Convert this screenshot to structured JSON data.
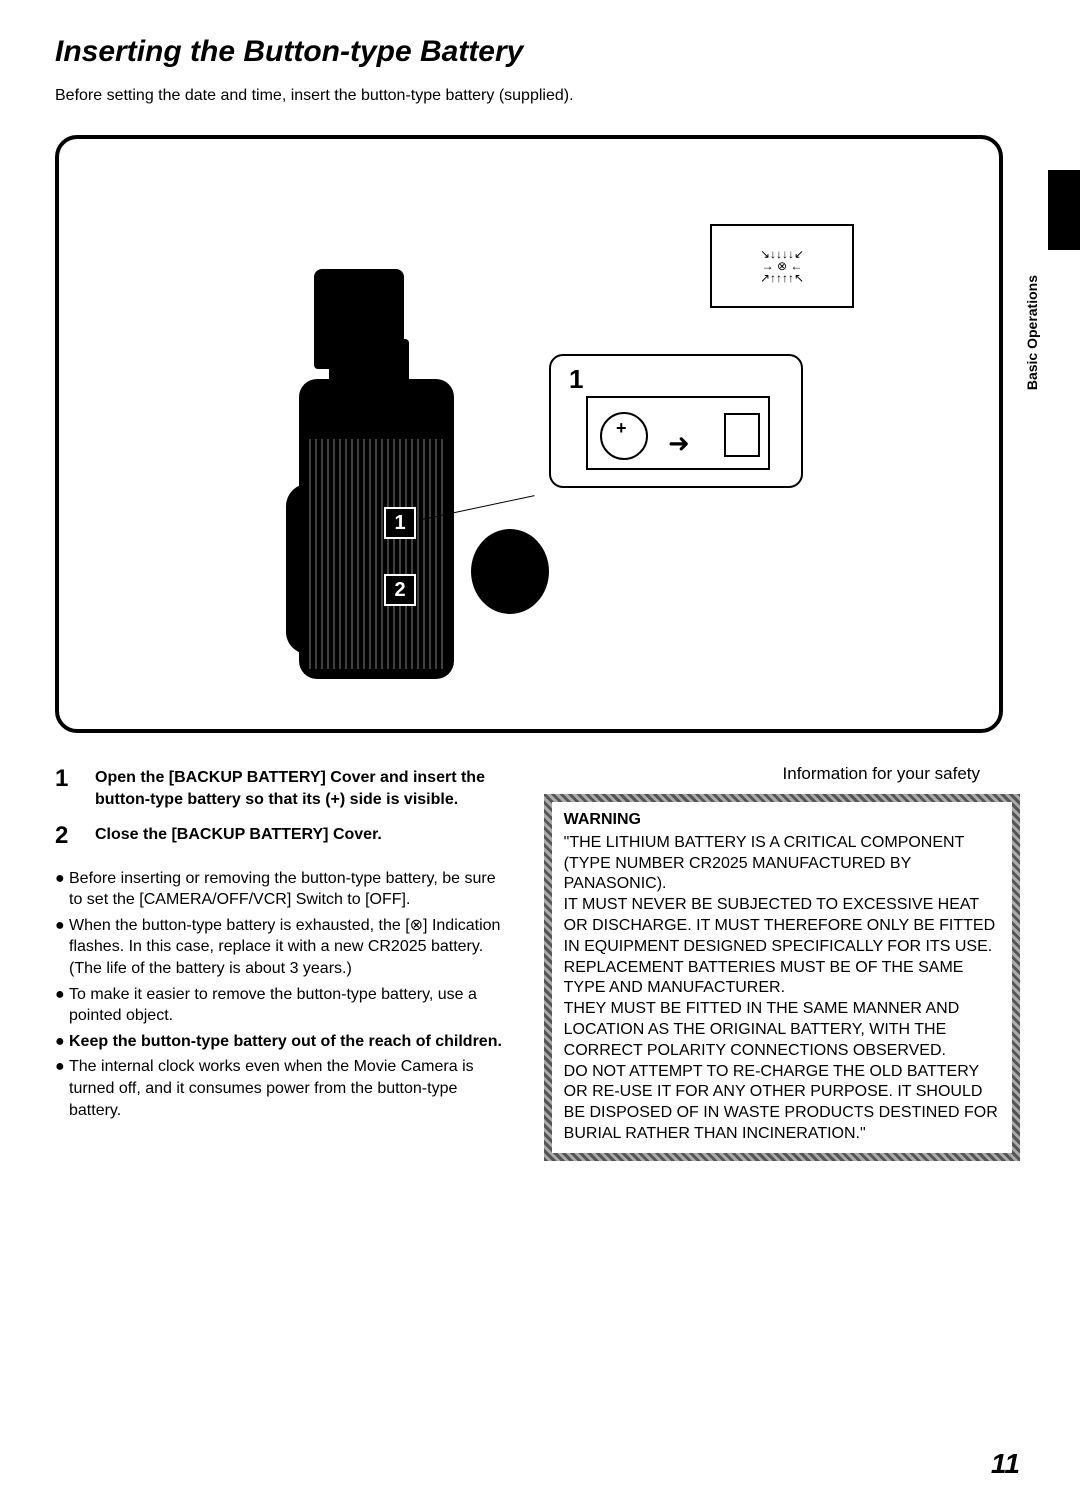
{
  "title": "Inserting the Button-type Battery",
  "intro": "Before setting the date and time, insert the button-type battery (supplied).",
  "side_label": "Basic Operations",
  "diagram": {
    "label_1": "1",
    "label_2": "2",
    "callout_num": "1"
  },
  "steps": [
    {
      "num": "1",
      "text": "Open the [BACKUP BATTERY] Cover and insert the button-type battery so that its (+) side is visible."
    },
    {
      "num": "2",
      "text": "Close the [BACKUP BATTERY] Cover."
    }
  ],
  "notes": [
    "Before inserting or removing the button-type battery, be sure to set the [CAMERA/OFF/VCR] Switch to [OFF].",
    "When the button-type battery is exhausted, the [⊗] Indication flashes. In this case, replace it with a new CR2025 battery.\n(The life of the battery is about 3 years.)",
    "To make it easier to remove the button-type battery, use a pointed object."
  ],
  "note_bold": "Keep the button-type battery out of the reach of children.",
  "note_last": "The internal clock works even when the Movie Camera is turned off, and it consumes power from the button-type battery.",
  "safety_title": "Information for your safety",
  "warning": {
    "title": "WARNING",
    "body": "\"THE LITHIUM BATTERY IS A CRITICAL COMPONENT (TYPE NUMBER CR2025 MANUFACTURED BY PANASONIC).\nIT MUST NEVER BE SUBJECTED TO EXCESSIVE HEAT OR DISCHARGE. IT MUST THEREFORE ONLY BE FITTED IN EQUIPMENT DESIGNED SPECIFICALLY FOR ITS USE. REPLACEMENT BATTERIES MUST BE OF THE SAME TYPE AND MANUFACTURER.\nTHEY MUST BE FITTED IN THE SAME MANNER AND LOCATION AS THE ORIGINAL BATTERY, WITH THE CORRECT POLARITY CONNECTIONS OBSERVED.\nDO NOT ATTEMPT TO RE-CHARGE THE OLD BATTERY OR RE-USE IT FOR ANY OTHER PURPOSE. IT SHOULD BE DISPOSED OF IN WASTE PRODUCTS DESTINED FOR BURIAL RATHER THAN INCINERATION.\""
  },
  "page_number": "11"
}
